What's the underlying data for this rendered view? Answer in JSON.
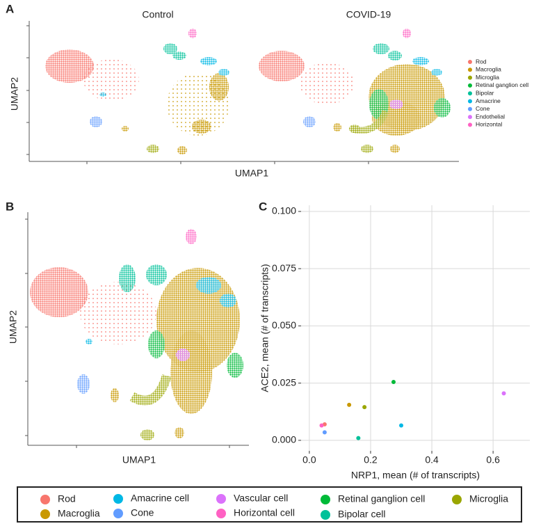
{
  "figure": {
    "panel_a": {
      "label": "A",
      "titles": [
        "Control",
        "COVID-19"
      ],
      "x_label": "UMAP1",
      "y_label": "UMAP2",
      "legend": [
        {
          "name": "Rod",
          "color": "#F8766D"
        },
        {
          "name": "Macroglia",
          "color": "#C99800"
        },
        {
          "name": "Microglia",
          "color": "#9AA600"
        },
        {
          "name": "Retinal ganglion cell",
          "color": "#00BA38"
        },
        {
          "name": "Bipolar",
          "color": "#00C19A"
        },
        {
          "name": "Amacrine",
          "color": "#00B8E5"
        },
        {
          "name": "Cone",
          "color": "#619CFF"
        },
        {
          "name": "Endothelial",
          "color": "#DB72FB"
        },
        {
          "name": "Horizontal",
          "color": "#FF61C3"
        }
      ]
    },
    "panel_b": {
      "label": "B",
      "x_label": "UMAP1",
      "y_label": "UMAP2"
    },
    "legend": [
      {
        "name": "Rod",
        "color": "#F8766D"
      },
      {
        "name": "Macroglia",
        "color": "#C99800"
      },
      {
        "name": "Amacrine cell",
        "color": "#00B8E5"
      },
      {
        "name": "Cone",
        "color": "#619CFF"
      },
      {
        "name": "Vascular cell",
        "color": "#DB72FB"
      },
      {
        "name": "Horizontal cell",
        "color": "#FF61C3"
      },
      {
        "name": "Retinal ganglion cell",
        "color": "#00BA38"
      },
      {
        "name": "Bipolar cell",
        "color": "#00C19A"
      },
      {
        "name": "Microglia",
        "color": "#9AA600"
      }
    ]
  },
  "chart_data": {
    "type": "scatter",
    "panel_label": "C",
    "x_label": "NRP1, mean (# of transcripts)",
    "y_label": "ACE2, mean (# of transcripts)",
    "x": [
      0.05,
      0.04,
      0.05,
      0.13,
      0.18,
      0.275,
      0.3,
      0.16,
      0.635
    ],
    "y": [
      0.007,
      0.0065,
      0.0035,
      0.0155,
      0.0145,
      0.0255,
      0.0065,
      0.001,
      0.0205
    ],
    "colors": [
      "#F8766D",
      "#FF61C3",
      "#619CFF",
      "#C99800",
      "#9AA600",
      "#00BA38",
      "#00B8E5",
      "#00C19A",
      "#DB72FB"
    ],
    "xlim": [
      -0.027,
      0.72
    ],
    "ylim": [
      -0.0046,
      0.1027
    ],
    "xticks": [
      {
        "value": 0,
        "label": "0.0"
      },
      0.2,
      0.4,
      0.6
    ],
    "yticks": [
      {
        "value": 0,
        "label": "0.000"
      },
      0.025,
      {
        "value": 0.05,
        "label": "0.050"
      },
      0.075,
      {
        "value": 0.1,
        "label": "0.100"
      }
    ],
    "grid": true
  }
}
